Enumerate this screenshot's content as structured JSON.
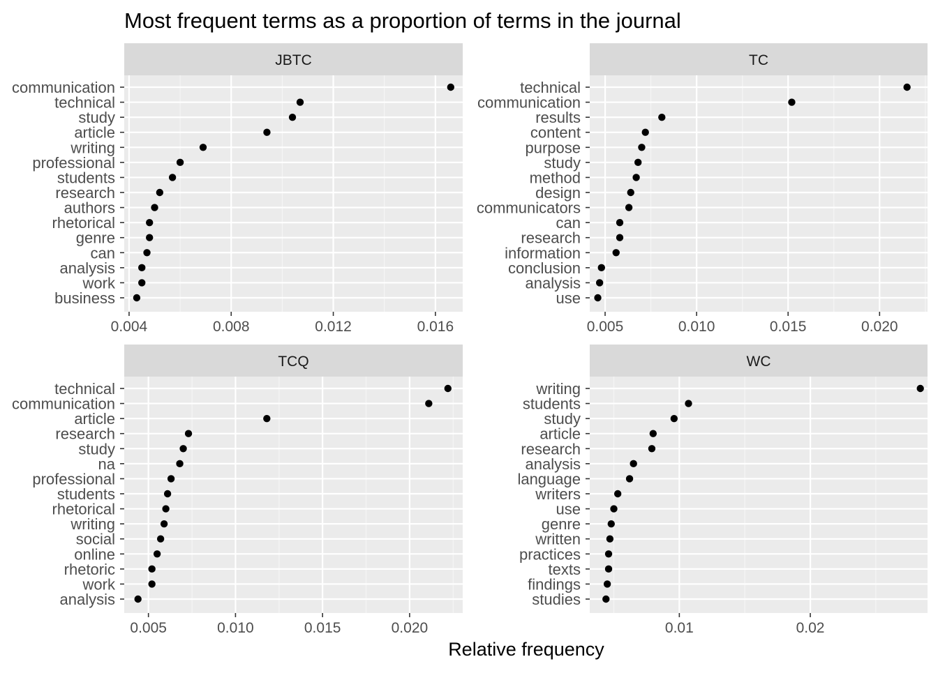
{
  "title": "Most frequent terms as a proportion of terms in the journal",
  "xlabel": "Relative frequency",
  "colors": {
    "panel_bg": "#EBEBEB",
    "strip_bg": "#D9D9D9",
    "grid_major": "#FFFFFF",
    "grid_minor": "#F5F5F5",
    "point": "#000000",
    "tick_text": "#4D4D4D",
    "text": "#1A1A1A"
  },
  "chart_data": [
    {
      "type": "scatter",
      "facet": "JBTC",
      "xlim": [
        0.00381,
        0.01707
      ],
      "x_ticks": [
        0.004,
        0.008,
        0.012,
        0.016
      ],
      "x_tick_labels": [
        "0.004",
        "0.008",
        "0.012",
        "0.016"
      ],
      "terms": [
        "communication",
        "technical",
        "study",
        "article",
        "writing",
        "professional",
        "students",
        "research",
        "authors",
        "rhetorical",
        "genre",
        "can",
        "analysis",
        "work",
        "business"
      ],
      "values": [
        0.0166,
        0.0107,
        0.0104,
        0.0094,
        0.0069,
        0.006,
        0.0057,
        0.0052,
        0.005,
        0.0048,
        0.0048,
        0.0047,
        0.0045,
        0.0045,
        0.0043
      ]
    },
    {
      "type": "scatter",
      "facet": "TC",
      "xlim": [
        0.00416,
        0.02262
      ],
      "x_ticks": [
        0.005,
        0.01,
        0.015,
        0.02
      ],
      "x_tick_labels": [
        "0.005",
        "0.010",
        "0.015",
        "0.020"
      ],
      "terms": [
        "technical",
        "communication",
        "results",
        "content",
        "purpose",
        "study",
        "method",
        "design",
        "communicators",
        "can",
        "research",
        "information",
        "conclusion",
        "analysis",
        "use"
      ],
      "values": [
        0.0215,
        0.0152,
        0.0081,
        0.0072,
        0.007,
        0.0068,
        0.0067,
        0.0064,
        0.0063,
        0.0058,
        0.0058,
        0.0056,
        0.0048,
        0.0047,
        0.0046
      ]
    },
    {
      "type": "scatter",
      "facet": "TCQ",
      "xlim": [
        0.00361,
        0.02305
      ],
      "x_ticks": [
        0.005,
        0.01,
        0.015,
        0.02
      ],
      "x_tick_labels": [
        "0.005",
        "0.010",
        "0.015",
        "0.020"
      ],
      "terms": [
        "technical",
        "communication",
        "article",
        "research",
        "study",
        "na",
        "professional",
        "students",
        "rhetorical",
        "writing",
        "social",
        "online",
        "rhetoric",
        "work",
        "analysis"
      ],
      "values": [
        0.0222,
        0.0211,
        0.0118,
        0.0073,
        0.007,
        0.0068,
        0.0063,
        0.0061,
        0.006,
        0.0059,
        0.0057,
        0.0055,
        0.0052,
        0.0052,
        0.0044
      ]
    },
    {
      "type": "scatter",
      "facet": "WC",
      "xlim": [
        0.00316,
        0.02895
      ],
      "x_ticks": [
        0.01,
        0.02
      ],
      "x_tick_labels": [
        "0.01",
        "0.02"
      ],
      "terms": [
        "writing",
        "students",
        "study",
        "article",
        "research",
        "analysis",
        "language",
        "writers",
        "use",
        "genre",
        "written",
        "practices",
        "texts",
        "findings",
        "studies"
      ],
      "values": [
        0.0284,
        0.0107,
        0.0096,
        0.008,
        0.0079,
        0.0065,
        0.0062,
        0.0053,
        0.005,
        0.0048,
        0.0047,
        0.0046,
        0.0046,
        0.0045,
        0.0044
      ]
    }
  ]
}
